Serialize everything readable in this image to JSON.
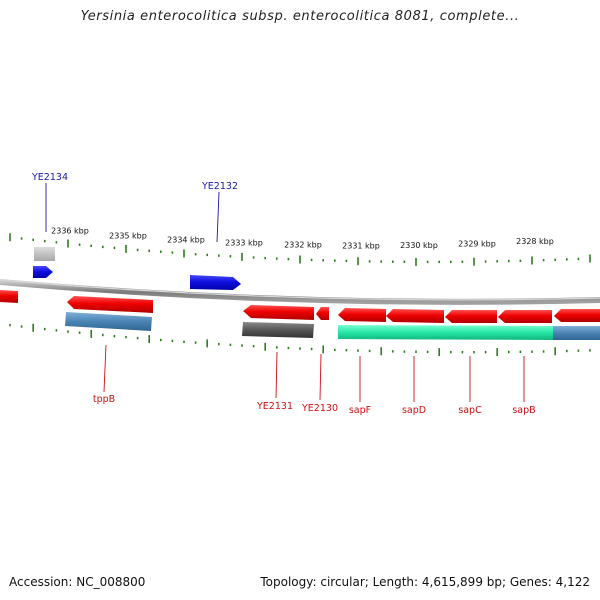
{
  "title": "Yersinia enterocolitica subsp. enterocolitica 8081, complete...",
  "footer": {
    "accession": "Accession: NC_008800",
    "summary": "Topology: circular; Length: 4,615,899 bp; Genes: 4,122"
  },
  "scale_labels": [
    "2336 kbp",
    "2335 kbp",
    "2334 kbp",
    "2333 kbp",
    "2332 kbp",
    "2331 kbp",
    "2330 kbp",
    "2329 kbp",
    "2328 kbp"
  ],
  "gene_labels": {
    "top": [
      "YE2134",
      "YE2132"
    ],
    "bottom": [
      "tppB",
      "YE2131",
      "YE2130",
      "sapF",
      "sapD",
      "sapC",
      "sapB"
    ]
  },
  "colors": {
    "forward_cds": "#1010e0",
    "reverse_cds": "#ee0000",
    "forward_label": "#1a1aa8",
    "reverse_label": "#cc1111",
    "tick": "#2e7d1e",
    "backbone": "#8a8a8a",
    "ortholog_blue": "#4a84b4",
    "ortholog_grey": "#555555",
    "ortholog_green": "#25e6a6"
  }
}
